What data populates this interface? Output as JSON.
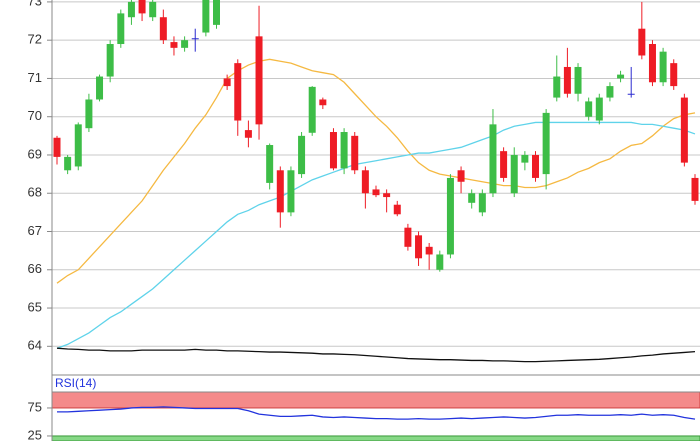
{
  "chart_data": [
    {
      "type": "candlestick",
      "open": [
        69.45,
        68.6,
        68.7,
        69.7,
        70.45,
        71.05,
        71.9,
        72.6,
        73.05,
        72.6,
        72.6,
        71.95,
        71.8,
        72.05,
        72.2,
        72.4,
        71.0,
        71.4,
        69.65,
        72.1,
        68.27,
        68.6,
        67.5,
        68.5,
        69.58,
        70.45,
        69.6,
        68.65,
        69.5,
        68.6,
        68.1,
        68.0,
        67.7,
        67.1,
        66.9,
        66.6,
        66.0,
        66.4,
        68.6,
        67.75,
        67.5,
        68.0,
        69.1,
        68.0,
        68.8,
        69.0,
        68.5,
        70.5,
        71.3,
        70.6,
        70.0,
        69.9,
        70.5,
        71.0,
        70.6,
        72.3,
        71.9,
        70.9,
        71.4,
        70.5,
        68.4
      ],
      "high": [
        69.5,
        69.0,
        69.85,
        70.6,
        71.1,
        72.0,
        72.8,
        73.1,
        73.1,
        73.1,
        72.8,
        72.1,
        72.1,
        72.3,
        73.1,
        73.1,
        71.1,
        71.5,
        69.9,
        72.9,
        69.3,
        68.7,
        68.7,
        69.6,
        70.8,
        70.5,
        69.7,
        69.7,
        69.6,
        68.7,
        68.2,
        68.1,
        67.8,
        67.2,
        67.0,
        66.7,
        66.5,
        68.5,
        68.7,
        68.1,
        68.1,
        70.2,
        69.2,
        69.2,
        69.1,
        69.1,
        70.2,
        71.6,
        71.8,
        71.4,
        70.5,
        70.6,
        70.9,
        71.2,
        71.3,
        73.0,
        72.0,
        71.8,
        71.5,
        70.6,
        68.5
      ],
      "low": [
        68.75,
        68.5,
        68.6,
        69.6,
        70.4,
        70.9,
        71.8,
        72.4,
        72.5,
        72.5,
        71.9,
        71.6,
        71.7,
        71.7,
        72.1,
        72.3,
        70.7,
        69.5,
        69.2,
        69.4,
        68.1,
        67.1,
        67.4,
        68.4,
        69.5,
        70.2,
        68.6,
        68.5,
        68.5,
        67.6,
        67.9,
        67.5,
        67.4,
        66.5,
        66.1,
        66.0,
        65.95,
        66.3,
        68.0,
        67.6,
        67.4,
        67.9,
        68.3,
        67.9,
        68.6,
        68.3,
        68.1,
        70.4,
        70.5,
        70.4,
        69.9,
        69.8,
        70.4,
        70.9,
        70.5,
        71.5,
        70.8,
        70.8,
        70.7,
        68.7,
        67.7
      ],
      "close": [
        68.95,
        68.95,
        69.8,
        70.45,
        71.05,
        71.9,
        72.7,
        73.0,
        72.7,
        73.0,
        72.0,
        71.8,
        72.0,
        72.05,
        73.05,
        73.05,
        70.8,
        69.9,
        69.45,
        69.8,
        69.26,
        67.5,
        68.6,
        69.5,
        70.78,
        70.3,
        68.65,
        69.6,
        68.6,
        68.0,
        67.95,
        67.9,
        67.45,
        66.6,
        66.3,
        66.4,
        66.4,
        68.4,
        68.3,
        68.0,
        68.0,
        69.8,
        68.4,
        69.0,
        69.0,
        68.4,
        70.1,
        71.05,
        70.6,
        71.3,
        70.4,
        70.5,
        70.8,
        71.1,
        70.6,
        71.6,
        70.9,
        71.7,
        70.8,
        68.8,
        67.8
      ],
      "up_color": "#3dbd47",
      "down_color": "#ee1c25",
      "flat_color": "#2a2ad0",
      "lines": [
        {
          "color": "#f5b942",
          "values": [
            65.65,
            65.85,
            66.0,
            66.3,
            66.6,
            66.9,
            67.2,
            67.5,
            67.8,
            68.2,
            68.6,
            68.95,
            69.3,
            69.7,
            70.05,
            70.5,
            71.0,
            71.2,
            71.35,
            71.45,
            71.5,
            71.45,
            71.4,
            71.3,
            71.2,
            71.15,
            71.1,
            70.9,
            70.6,
            70.3,
            70.0,
            69.75,
            69.45,
            69.1,
            68.8,
            68.6,
            68.5,
            68.45,
            68.4,
            68.35,
            68.3,
            68.25,
            68.2,
            68.2,
            68.15,
            68.15,
            68.2,
            68.3,
            68.4,
            68.55,
            68.65,
            68.8,
            68.9,
            69.1,
            69.25,
            69.3,
            69.5,
            69.75,
            69.95,
            70.05,
            70.1
          ]
        },
        {
          "color": "#5fd3ea",
          "values": [
            63.95,
            64.05,
            64.2,
            64.35,
            64.55,
            64.75,
            64.9,
            65.1,
            65.3,
            65.5,
            65.75,
            66.0,
            66.25,
            66.5,
            66.75,
            67.0,
            67.25,
            67.45,
            67.55,
            67.7,
            67.8,
            67.9,
            68.05,
            68.2,
            68.35,
            68.45,
            68.55,
            68.65,
            68.75,
            68.8,
            68.85,
            68.9,
            68.95,
            69.0,
            69.05,
            69.05,
            69.1,
            69.15,
            69.2,
            69.3,
            69.4,
            69.5,
            69.65,
            69.75,
            69.8,
            69.85,
            69.85,
            69.85,
            69.85,
            69.85,
            69.85,
            69.85,
            69.85,
            69.85,
            69.85,
            69.8,
            69.8,
            69.75,
            69.7,
            69.65,
            69.55
          ]
        },
        {
          "color": "#111111",
          "values": [
            63.95,
            63.93,
            63.92,
            63.9,
            63.9,
            63.88,
            63.88,
            63.88,
            63.9,
            63.9,
            63.9,
            63.9,
            63.9,
            63.92,
            63.9,
            63.9,
            63.88,
            63.88,
            63.87,
            63.86,
            63.85,
            63.85,
            63.84,
            63.83,
            63.82,
            63.8,
            63.8,
            63.79,
            63.78,
            63.76,
            63.74,
            63.72,
            63.7,
            63.68,
            63.67,
            63.66,
            63.65,
            63.65,
            63.64,
            63.63,
            63.63,
            63.62,
            63.62,
            63.61,
            63.6,
            63.6,
            63.61,
            63.62,
            63.63,
            63.64,
            63.65,
            63.66,
            63.68,
            63.7,
            63.72,
            63.75,
            63.77,
            63.8,
            63.82,
            63.84,
            63.86
          ]
        }
      ],
      "ylim": [
        63.25,
        73.05
      ],
      "yticks": [
        64,
        65,
        66,
        67,
        68,
        69,
        70,
        71,
        72,
        73
      ],
      "grid": true
    },
    {
      "type": "line",
      "series": [
        {
          "name": "RSI(14)",
          "color": "#2233dd",
          "values": [
            68,
            68,
            69,
            70,
            71,
            72,
            73,
            75,
            76,
            76,
            77,
            76,
            75,
            74,
            74,
            74,
            74,
            74,
            70,
            64,
            62,
            60,
            60,
            61,
            62,
            59,
            58,
            59,
            58,
            57,
            56,
            56,
            55,
            55,
            56,
            55,
            55,
            56,
            57,
            56,
            57,
            58,
            59,
            58,
            57,
            58,
            60,
            62,
            62,
            63,
            62,
            62,
            62,
            63,
            62,
            64,
            62,
            63,
            62,
            58,
            55
          ]
        }
      ],
      "overbought_color": "#f48a8a",
      "oversold_color": "#86d886",
      "ylim": [
        16,
        103.5
      ],
      "yticks": [
        75,
        25
      ],
      "grid": false
    }
  ]
}
